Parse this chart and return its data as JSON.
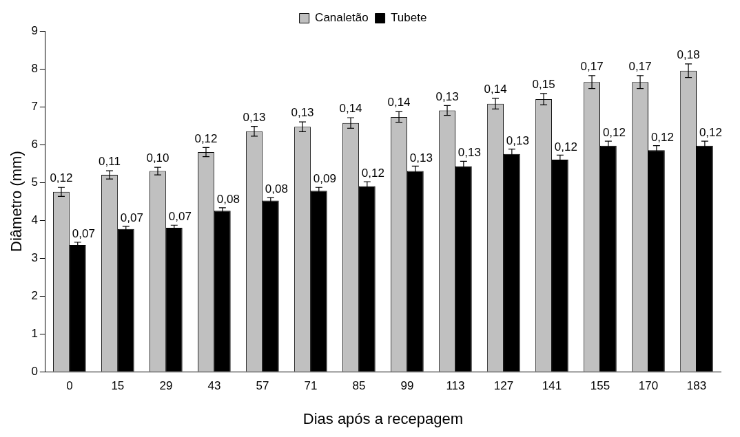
{
  "chart_data": {
    "type": "bar",
    "xlabel": "Dias após a recepagem",
    "ylabel": "Diâmetro (mm)",
    "categories": [
      "0",
      "15",
      "29",
      "43",
      "57",
      "71",
      "85",
      "99",
      "113",
      "127",
      "141",
      "155",
      "170",
      "183"
    ],
    "series": [
      {
        "name": "Canaletão",
        "color": "#c0c0c0",
        "values": [
          4.75,
          5.2,
          5.3,
          5.8,
          6.35,
          6.47,
          6.57,
          6.73,
          6.9,
          7.08,
          7.2,
          7.65,
          7.65,
          7.95
        ],
        "errors": [
          0.12,
          0.11,
          0.1,
          0.12,
          0.13,
          0.13,
          0.14,
          0.14,
          0.13,
          0.14,
          0.15,
          0.17,
          0.17,
          0.18
        ]
      },
      {
        "name": "Tubete",
        "color": "#000000",
        "values": [
          3.35,
          3.77,
          3.8,
          4.25,
          4.52,
          4.78,
          4.9,
          5.3,
          5.43,
          5.75,
          5.6,
          5.97,
          5.85,
          5.97
        ],
        "errors": [
          0.07,
          0.07,
          0.07,
          0.08,
          0.08,
          0.09,
          0.12,
          0.13,
          0.13,
          0.13,
          0.12,
          0.12,
          0.12,
          0.12
        ]
      }
    ],
    "annotations": [
      {
        "text": "0,12",
        "x": "0",
        "y": 4.75
      },
      {
        "text": "0,11",
        "x": "15",
        "y": 5.2
      },
      {
        "text": "0,10",
        "x": "29",
        "y": 5.3
      },
      {
        "text": "0,12",
        "x": "43",
        "y": 5.8
      },
      {
        "text": "0,13",
        "x": "57",
        "y": 6.35
      },
      {
        "text": "0,13",
        "x": "71",
        "y": 6.47
      },
      {
        "text": "0,14",
        "x": "85",
        "y": 6.57
      },
      {
        "text": "0,14",
        "x": "99",
        "y": 6.73
      },
      {
        "text": "0,13",
        "x": "113",
        "y": 6.9
      },
      {
        "text": "0,14",
        "x": "127",
        "y": 7.08
      },
      {
        "text": "0,15",
        "x": "141",
        "y": 7.2
      },
      {
        "text": "0,17",
        "x": "155",
        "y": 7.65
      },
      {
        "text": "0,17",
        "x": "170",
        "y": 7.65
      },
      {
        "text": "0,18",
        "x": "183",
        "y": 7.95
      },
      {
        "text": "0,07",
        "x": "0",
        "y": 3.35
      },
      {
        "text": "0,07",
        "x": "15",
        "y": 3.77
      },
      {
        "text": "0,07",
        "x": "29",
        "y": 3.8
      },
      {
        "text": "0,08",
        "x": "43",
        "y": 4.25
      },
      {
        "text": "0,08",
        "x": "57",
        "y": 4.52
      },
      {
        "text": "0,09",
        "x": "71",
        "y": 4.78
      },
      {
        "text": "0,12",
        "x": "85",
        "y": 4.9
      },
      {
        "text": "0,13",
        "x": "99",
        "y": 5.3
      },
      {
        "text": "0,13",
        "x": "113",
        "y": 5.43
      },
      {
        "text": "0,13",
        "x": "127",
        "y": 5.75
      },
      {
        "text": "0,12",
        "x": "141",
        "y": 5.6
      },
      {
        "text": "0,12",
        "x": "155",
        "y": 5.97
      },
      {
        "text": "0,12",
        "x": "170",
        "y": 5.85
      },
      {
        "text": "0,12",
        "x": "183",
        "y": 5.97
      }
    ],
    "ylim": [
      0,
      9
    ],
    "yticks": [
      0,
      1,
      2,
      3,
      4,
      5,
      6,
      7,
      8,
      9
    ],
    "grid": false,
    "legend": "top"
  }
}
